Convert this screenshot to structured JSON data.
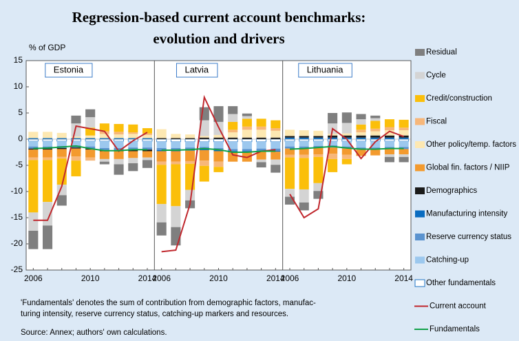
{
  "chart_data": {
    "type": "bar",
    "stacked": true,
    "title": [
      "Regression-based current account benchmarks:",
      "evolution and drivers"
    ],
    "y_label": "% of GDP",
    "panels": [
      "Estonia",
      "Latvia",
      "Lithuania"
    ],
    "categories": [
      "2006",
      null,
      null,
      null,
      "2010",
      null,
      null,
      null,
      "2014"
    ],
    "ylim": [
      -25,
      15
    ],
    "yticks": [
      15,
      10,
      5,
      0,
      -5,
      -10,
      -15,
      -20,
      -25
    ],
    "series": [
      {
        "name": "Residual",
        "color": "#7f7f7f",
        "values": [
          [
            -3.5,
            -4.5,
            -2,
            1.5,
            1.5,
            -0.5,
            -2,
            -1.5,
            -1.5
          ],
          [
            -2.5,
            -3.5,
            -1.5,
            2.5,
            3,
            1.5,
            0.5,
            -1,
            -1.5
          ],
          [
            -1.5,
            -1.5,
            -1.5,
            2,
            2,
            1,
            0.5,
            -1,
            -1
          ]
        ]
      },
      {
        "name": "Cycle",
        "color": "#d4d4d4",
        "values": [
          [
            -3.5,
            -4.5,
            -2,
            2.5,
            2,
            -0.5,
            -1,
            -1,
            -0.5
          ],
          [
            -3.5,
            -4,
            -2,
            3,
            2.5,
            1.5,
            0.5,
            -0.5,
            -1
          ],
          [
            -1.5,
            -2.5,
            -1.5,
            2,
            2,
            1,
            0.5,
            -0.5,
            -0.5
          ]
        ]
      },
      {
        "name": "Credit/construction",
        "color": "#fbbf0a",
        "values": [
          [
            -10,
            -8,
            -5,
            -3,
            1.5,
            1.5,
            1.5,
            1.5,
            1
          ],
          [
            -7.5,
            -8,
            -5,
            -3,
            -1,
            1.5,
            1.5,
            1.5,
            1.5
          ],
          [
            -6,
            -6,
            -5,
            -2.5,
            -1,
            1,
            1.5,
            1.5,
            1.5
          ]
        ]
      },
      {
        "name": "Fiscal",
        "color": "#f7b77a",
        "values": [
          [
            -0.5,
            -0.5,
            -0.3,
            -0.8,
            -0.6,
            0.5,
            0.5,
            0.3,
            0.3
          ],
          [
            -0.6,
            -0.5,
            -0.5,
            -1,
            -1,
            0.5,
            0.6,
            0.6,
            0.5
          ],
          [
            -0.5,
            -0.6,
            -0.5,
            -1,
            -0.8,
            0.5,
            0.5,
            0.6,
            0.5
          ]
        ]
      },
      {
        "name": "Other policy/temp. factors",
        "color": "#fde8b2",
        "values": [
          [
            1.2,
            1.2,
            1,
            0.3,
            0.5,
            0.8,
            0.7,
            0.8,
            0.6
          ],
          [
            1.7,
            0.8,
            0.7,
            0.3,
            0.5,
            1,
            1.5,
            1.5,
            1.3
          ],
          [
            1.2,
            1.1,
            1,
            0.3,
            0.4,
            0.6,
            0.8,
            1,
            1
          ]
        ]
      },
      {
        "name": "Global fin. factors / NIIP",
        "color": "#f39a2e",
        "values": [
          [
            -1.5,
            -1.5,
            -1.5,
            -1.5,
            -1.5,
            -1.5,
            -1.5,
            -1.3,
            -1.2
          ],
          [
            -2,
            -2,
            -2,
            -2,
            -2,
            -1.8,
            -1.8,
            -1.5,
            -1.5
          ],
          [
            -1.2,
            -1.2,
            -1.2,
            -1.2,
            -1.2,
            -1.2,
            -1.1,
            -1,
            -1
          ]
        ]
      },
      {
        "name": "Demographics",
        "color": "#1a1a1a",
        "values": [
          [
            -0.2,
            -0.2,
            -0.2,
            -0.2,
            -0.2,
            -0.2,
            -0.2,
            -0.3,
            -0.3
          ],
          [
            0.2,
            0.2,
            0.2,
            0.3,
            0.3,
            0.3,
            0.3,
            0.3,
            0.3
          ],
          [
            0.3,
            0.3,
            0.3,
            0.4,
            0.4,
            0.4,
            0.4,
            0.4,
            0.4
          ]
        ]
      },
      {
        "name": "Manufacturing intensity",
        "color": "#0a6cc0",
        "values": [
          [
            0.2,
            0.2,
            0.2,
            0.2,
            0.2,
            0.2,
            0.2,
            0.2,
            0.2
          ],
          [
            -0.2,
            -0.2,
            -0.2,
            -0.2,
            -0.2,
            -0.2,
            -0.2,
            -0.2,
            -0.2
          ],
          [
            0.3,
            0.3,
            0.3,
            0.3,
            0.3,
            0.3,
            0.3,
            0.3,
            0.3
          ]
        ]
      },
      {
        "name": "Reserve currency status",
        "color": "#5b93cf",
        "values": [
          [
            -0.4,
            -0.4,
            -0.4,
            -0.4,
            -0.4,
            -0.4,
            -0.4,
            -0.4,
            -0.4
          ],
          [
            -0.4,
            -0.4,
            -0.4,
            -0.4,
            -0.4,
            -0.4,
            -0.4,
            -0.4,
            -0.4
          ],
          [
            -0.4,
            -0.4,
            -0.4,
            -0.4,
            -0.4,
            -0.4,
            -0.4,
            -0.4,
            -0.4
          ]
        ]
      },
      {
        "name": "Catching-up",
        "color": "#9cc8ee",
        "values": [
          [
            -1,
            -1,
            -0.9,
            -0.8,
            -1,
            -1.3,
            -1.3,
            -1.2,
            -1.2
          ],
          [
            -1.2,
            -1.2,
            -1.1,
            -1,
            -1.2,
            -1.4,
            -1.4,
            -1.3,
            -1.3
          ],
          [
            -1,
            -1,
            -0.9,
            -0.8,
            -1,
            -1.2,
            -1.2,
            -1.1,
            -1.1
          ]
        ]
      },
      {
        "name": "Other fundamentals",
        "color": "#ffffff",
        "stroke": "#1f74c4",
        "values": [
          [
            -0.4,
            -0.4,
            -0.4,
            -0.4,
            -0.4,
            -0.4,
            -0.4,
            -0.4,
            -0.4
          ],
          [
            -0.5,
            -0.5,
            -0.5,
            -0.5,
            -0.5,
            -0.5,
            -0.5,
            -0.5,
            -0.5
          ],
          [
            -0.4,
            -0.4,
            -0.4,
            -0.4,
            -0.4,
            -0.4,
            -0.4,
            -0.4,
            -0.4
          ]
        ]
      },
      {
        "name": "Current account",
        "type": "line",
        "color": "#c0272d",
        "values": [
          [
            -15.5,
            -15.5,
            -9,
            2.5,
            2,
            1.5,
            -2.3,
            -0.3,
            1.3
          ],
          [
            -21.5,
            -21.2,
            -12.4,
            8,
            2.3,
            -3,
            -3.5,
            -2.3,
            -2
          ],
          [
            -10.5,
            -15,
            -13.3,
            2,
            0,
            -3.7,
            -0.5,
            1.5,
            0.5
          ]
        ]
      },
      {
        "name": "Fundamentals",
        "type": "line",
        "color": "#10a048",
        "values": [
          [
            -1.8,
            -1.7,
            -1.5,
            -1.3,
            -1.8,
            -2.2,
            -2.2,
            -2,
            -2
          ],
          [
            -2.1,
            -2.1,
            -2,
            -1.8,
            -2,
            -2.5,
            -2.5,
            -2.3,
            -2.3
          ],
          [
            -1.9,
            -1.8,
            -1.6,
            -1.4,
            -1.7,
            -1.9,
            -1.9,
            -1.8,
            -1.8
          ]
        ]
      }
    ],
    "note": [
      "'Fundamentals' denotes the sum of contribution from demographic factors, manufac-",
      "turing intensity, reserve currency status, catching-up markers and resources."
    ],
    "source": "Source: Annex; authors' own calculations."
  }
}
